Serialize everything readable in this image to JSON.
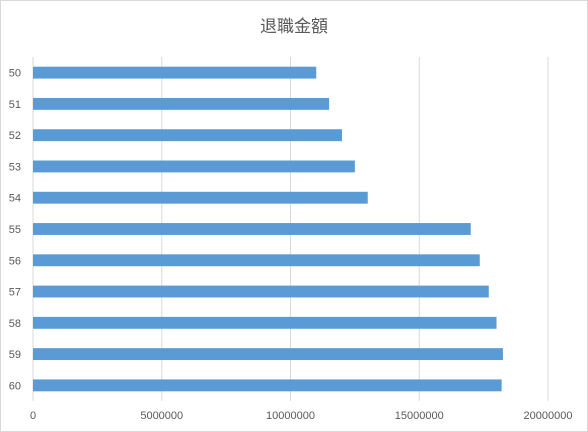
{
  "chart_data": {
    "type": "bar",
    "orientation": "horizontal",
    "title": "退職金額",
    "xlabel": "",
    "ylabel": "",
    "categories": [
      "50",
      "51",
      "52",
      "53",
      "54",
      "55",
      "56",
      "57",
      "58",
      "59",
      "60"
    ],
    "values": [
      11000000,
      11500000,
      12000000,
      12500000,
      13000000,
      17000000,
      17350000,
      17700000,
      18000000,
      18250000,
      18200000
    ],
    "xlim": [
      0,
      20000000
    ],
    "xticks": [
      "0",
      "5000000",
      "10000000",
      "15000000",
      "20000000"
    ],
    "grid": true,
    "legend": "none",
    "bar_color": "#5b9bd5",
    "grid_color": "#d9d9d9"
  }
}
